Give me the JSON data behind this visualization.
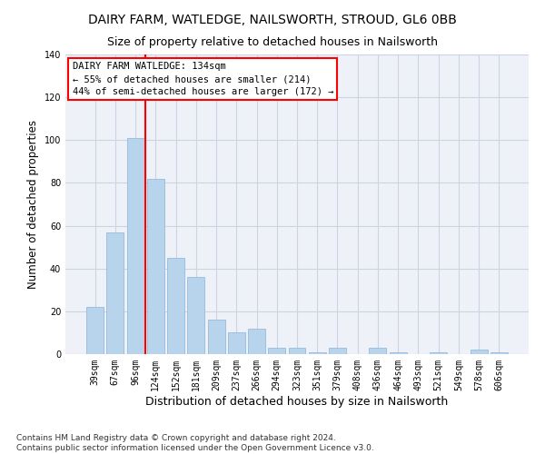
{
  "title": "DAIRY FARM, WATLEDGE, NAILSWORTH, STROUD, GL6 0BB",
  "subtitle": "Size of property relative to detached houses in Nailsworth",
  "xlabel": "Distribution of detached houses by size in Nailsworth",
  "ylabel": "Number of detached properties",
  "categories": [
    "39sqm",
    "67sqm",
    "96sqm",
    "124sqm",
    "152sqm",
    "181sqm",
    "209sqm",
    "237sqm",
    "266sqm",
    "294sqm",
    "323sqm",
    "351sqm",
    "379sqm",
    "408sqm",
    "436sqm",
    "464sqm",
    "493sqm",
    "521sqm",
    "549sqm",
    "578sqm",
    "606sqm"
  ],
  "values": [
    22,
    57,
    101,
    82,
    45,
    36,
    16,
    10,
    12,
    3,
    3,
    1,
    3,
    0,
    3,
    1,
    0,
    1,
    0,
    2,
    1
  ],
  "bar_color": "#b8d4ec",
  "bar_edge_color": "#8ab4d8",
  "red_line_x": 2.5,
  "annotation_line1": "DAIRY FARM WATLEDGE: 134sqm",
  "annotation_line2": "← 55% of detached houses are smaller (214)",
  "annotation_line3": "44% of semi-detached houses are larger (172) →",
  "ylim": [
    0,
    140
  ],
  "yticks": [
    0,
    20,
    40,
    60,
    80,
    100,
    120,
    140
  ],
  "footer1": "Contains HM Land Registry data © Crown copyright and database right 2024.",
  "footer2": "Contains public sector information licensed under the Open Government Licence v3.0.",
  "bg_color": "#eef2f8",
  "grid_color": "#ccd4e4",
  "title_fontsize": 10,
  "subtitle_fontsize": 9,
  "xlabel_fontsize": 9,
  "ylabel_fontsize": 8.5,
  "tick_fontsize": 7,
  "footer_fontsize": 6.5,
  "ann_fontsize": 7.5
}
